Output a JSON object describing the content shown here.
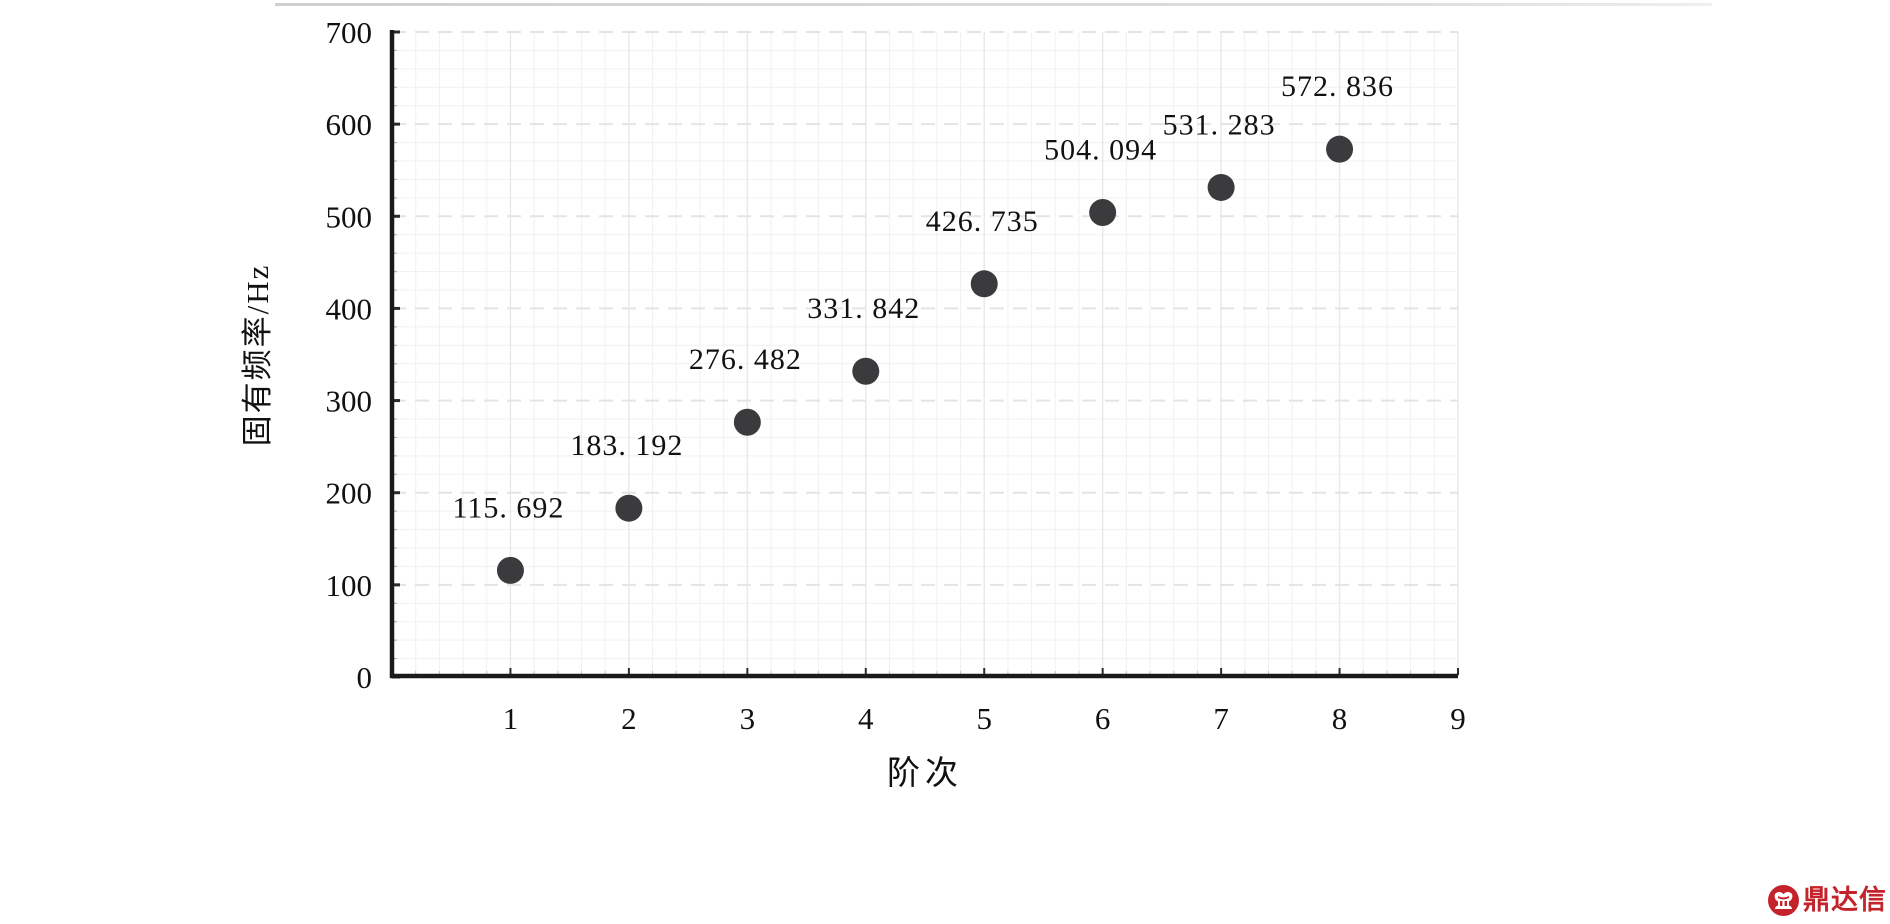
{
  "page": {
    "background": "#ffffff"
  },
  "chart_data": {
    "type": "scatter",
    "x": [
      1,
      2,
      3,
      4,
      5,
      6,
      7,
      8
    ],
    "values": [
      115.692,
      183.192,
      276.482,
      331.842,
      426.735,
      504.094,
      531.283,
      572.836
    ],
    "point_labels": [
      "115. 692",
      "183. 192",
      "276. 482",
      "331. 842",
      "426. 735",
      "504. 094",
      "531. 283",
      "572. 836"
    ],
    "title": "",
    "xlabel": "阶次",
    "ylabel": "固有频率/Hz",
    "xlim": [
      0,
      9
    ],
    "ylim": [
      0,
      700
    ],
    "xticks": [
      "1",
      "2",
      "3",
      "4",
      "5",
      "6",
      "7",
      "8",
      "9"
    ],
    "xtick_values": [
      1,
      2,
      3,
      4,
      5,
      6,
      7,
      8,
      9
    ],
    "yticks": [
      "0",
      "100",
      "200",
      "300",
      "400",
      "500",
      "600",
      "700"
    ],
    "ytick_values": [
      0,
      100,
      200,
      300,
      400,
      500,
      600,
      700
    ],
    "minor_x_step": 0.2,
    "minor_y_step": 20,
    "grid": "major-and-minor",
    "legend": "none",
    "colors": {
      "point": "#3b3b3e",
      "point_label": "#111111",
      "axis": "#1a1a1a",
      "tick_label": "#111111",
      "major_grid": "#e4e4e4",
      "minor_grid": "#f1f1f1"
    }
  },
  "watermark": {
    "text": "鼎达信",
    "color": "#c4232b"
  }
}
